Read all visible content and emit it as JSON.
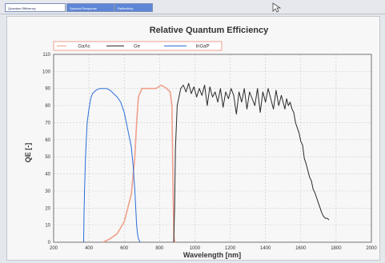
{
  "tabs": [
    {
      "label": "Quantum Efficiency",
      "active": true
    },
    {
      "label": "Spectral Response",
      "active": false
    },
    {
      "label": "Reflectivity",
      "active": false
    }
  ],
  "chart_data": {
    "type": "line",
    "title": "Relative Quantum Efficiency",
    "xlabel": "Wavelength [nm]",
    "ylabel": "QE [-]",
    "xlim": [
      200,
      2000
    ],
    "ylim": [
      0,
      110
    ],
    "x_ticks": [
      200,
      400,
      600,
      800,
      1000,
      1200,
      1400,
      1600,
      1800,
      2000
    ],
    "y_ticks": [
      0,
      10,
      20,
      30,
      40,
      50,
      60,
      70,
      80,
      90,
      100,
      110
    ],
    "grid": true,
    "legend_position": "top-left",
    "series": [
      {
        "name": "GaAs",
        "color": "#f0a08c",
        "x": [
          480,
          520,
          560,
          600,
          640,
          660,
          670,
          680,
          700,
          740,
          780,
          810,
          840,
          860,
          870,
          875,
          880,
          882,
          884,
          886,
          890
        ],
        "y": [
          0,
          2,
          5,
          12,
          28,
          50,
          70,
          85,
          90,
          90,
          90,
          92,
          90,
          88,
          80,
          40,
          10,
          3,
          1,
          0.5,
          0
        ]
      },
      {
        "name": "Ge",
        "color": "#2a2a2a",
        "x": [
          880,
          885,
          890,
          900,
          910,
          920,
          935,
          950,
          965,
          980,
          995,
          1010,
          1025,
          1040,
          1055,
          1070,
          1085,
          1100,
          1115,
          1130,
          1145,
          1160,
          1175,
          1190,
          1205,
          1220,
          1235,
          1250,
          1265,
          1280,
          1295,
          1310,
          1325,
          1340,
          1355,
          1370,
          1385,
          1400,
          1415,
          1430,
          1445,
          1460,
          1475,
          1490,
          1500,
          1510,
          1520,
          1530,
          1540,
          1550,
          1560,
          1570,
          1580,
          1590,
          1600,
          1610,
          1620,
          1630,
          1640,
          1650,
          1660,
          1670,
          1680,
          1690,
          1700,
          1710,
          1720,
          1730,
          1740,
          1750,
          1760
        ],
        "y": [
          0,
          20,
          55,
          80,
          85,
          90,
          92,
          88,
          93,
          87,
          91,
          85,
          90,
          86,
          92,
          80,
          91,
          85,
          88,
          82,
          90,
          79,
          88,
          84,
          90,
          86,
          75,
          88,
          82,
          90,
          78,
          88,
          84,
          80,
          90,
          76,
          88,
          82,
          90,
          84,
          78,
          89,
          80,
          86,
          82,
          78,
          84,
          80,
          82,
          78,
          76,
          70,
          67,
          64,
          59,
          57,
          49,
          46,
          42,
          38,
          36,
          31,
          29,
          26,
          23,
          20,
          17,
          15,
          14,
          14,
          13
        ]
      },
      {
        "name": "InGaP",
        "color": "#2b6ed8",
        "x": [
          370,
          372,
          375,
          380,
          385,
          390,
          400,
          410,
          420,
          440,
          460,
          480,
          500,
          520,
          540,
          560,
          580,
          600,
          620,
          640,
          650,
          660,
          665,
          670,
          675,
          680,
          685,
          690
        ],
        "y": [
          0,
          15,
          30,
          48,
          60,
          70,
          78,
          84,
          87,
          89,
          90,
          90,
          90,
          89,
          87,
          85,
          82,
          76,
          66,
          56,
          45,
          30,
          20,
          10,
          5,
          2,
          1,
          0
        ]
      }
    ],
    "legend_labels": [
      "GaAs",
      "Ge",
      "InGaP"
    ]
  }
}
